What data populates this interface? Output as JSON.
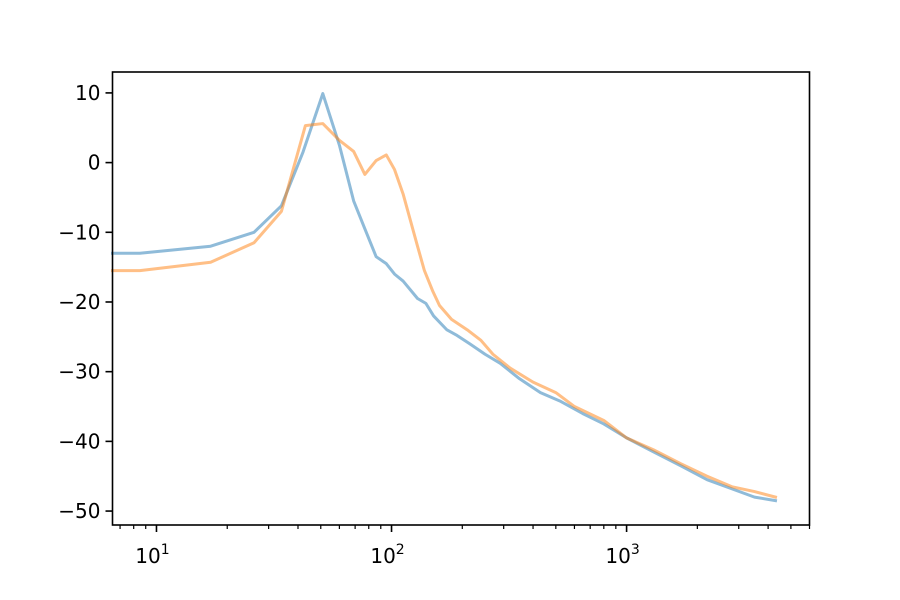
{
  "chart_data": {
    "type": "line",
    "title": "",
    "xlabel": "",
    "ylabel": "",
    "xscale": "log",
    "xlim": [
      6.5,
      6000
    ],
    "ylim": [
      -52,
      13
    ],
    "grid": false,
    "legend": "none",
    "x_ticks": [
      {
        "base": "10",
        "exp": "1",
        "value": 10
      },
      {
        "base": "10",
        "exp": "2",
        "value": 100
      },
      {
        "base": "10",
        "exp": "3",
        "value": 1000
      }
    ],
    "y_ticks": [
      {
        "label": "10",
        "value": 10
      },
      {
        "label": "0",
        "value": 0
      },
      {
        "label": "−10",
        "value": -10
      },
      {
        "label": "−20",
        "value": -20
      },
      {
        "label": "−30",
        "value": -30
      },
      {
        "label": "−40",
        "value": -40
      },
      {
        "label": "−50",
        "value": -50
      }
    ],
    "series": [
      {
        "color": "#1f77b4",
        "opacity": 0.5,
        "points": [
          [
            6.5,
            -13
          ],
          [
            8.5,
            -13
          ],
          [
            17,
            -12
          ],
          [
            26,
            -10
          ],
          [
            34,
            -6.2
          ],
          [
            42,
            1.5
          ],
          [
            51,
            9.9
          ],
          [
            60,
            2.5
          ],
          [
            69,
            -5.5
          ],
          [
            77,
            -9.5
          ],
          [
            86,
            -13.5
          ],
          [
            95,
            -14.5
          ],
          [
            103,
            -16
          ],
          [
            112,
            -17
          ],
          [
            129,
            -19.5
          ],
          [
            140,
            -20.2
          ],
          [
            151,
            -22
          ],
          [
            172,
            -24
          ],
          [
            190,
            -24.8
          ],
          [
            215,
            -26
          ],
          [
            250,
            -27.5
          ],
          [
            290,
            -28.8
          ],
          [
            350,
            -31
          ],
          [
            430,
            -33
          ],
          [
            520,
            -34.2
          ],
          [
            650,
            -36
          ],
          [
            800,
            -37.5
          ],
          [
            1000,
            -39.5
          ],
          [
            1300,
            -41.5
          ],
          [
            1700,
            -43.5
          ],
          [
            2200,
            -45.5
          ],
          [
            2800,
            -46.8
          ],
          [
            3500,
            -48
          ],
          [
            4300,
            -48.5
          ]
        ]
      },
      {
        "color": "#ff7f0e",
        "opacity": 0.5,
        "points": [
          [
            6.5,
            -15.5
          ],
          [
            8.5,
            -15.5
          ],
          [
            17,
            -14.3
          ],
          [
            26,
            -11.5
          ],
          [
            34,
            -7
          ],
          [
            43,
            5.3
          ],
          [
            51,
            5.6
          ],
          [
            60,
            3.2
          ],
          [
            69,
            1.6
          ],
          [
            77,
            -1.7
          ],
          [
            86,
            0.3
          ],
          [
            95,
            1.1
          ],
          [
            103,
            -1
          ],
          [
            112,
            -4.5
          ],
          [
            129,
            -12
          ],
          [
            138,
            -15.5
          ],
          [
            150,
            -18.5
          ],
          [
            160,
            -20.5
          ],
          [
            180,
            -22.5
          ],
          [
            210,
            -24
          ],
          [
            240,
            -25.5
          ],
          [
            270,
            -27.5
          ],
          [
            320,
            -29.5
          ],
          [
            400,
            -31.5
          ],
          [
            500,
            -33
          ],
          [
            600,
            -35
          ],
          [
            800,
            -37
          ],
          [
            1000,
            -39.5
          ],
          [
            1300,
            -41.2
          ],
          [
            1700,
            -43.2
          ],
          [
            2200,
            -45
          ],
          [
            2800,
            -46.5
          ],
          [
            3500,
            -47.2
          ],
          [
            4300,
            -48
          ]
        ]
      }
    ]
  }
}
